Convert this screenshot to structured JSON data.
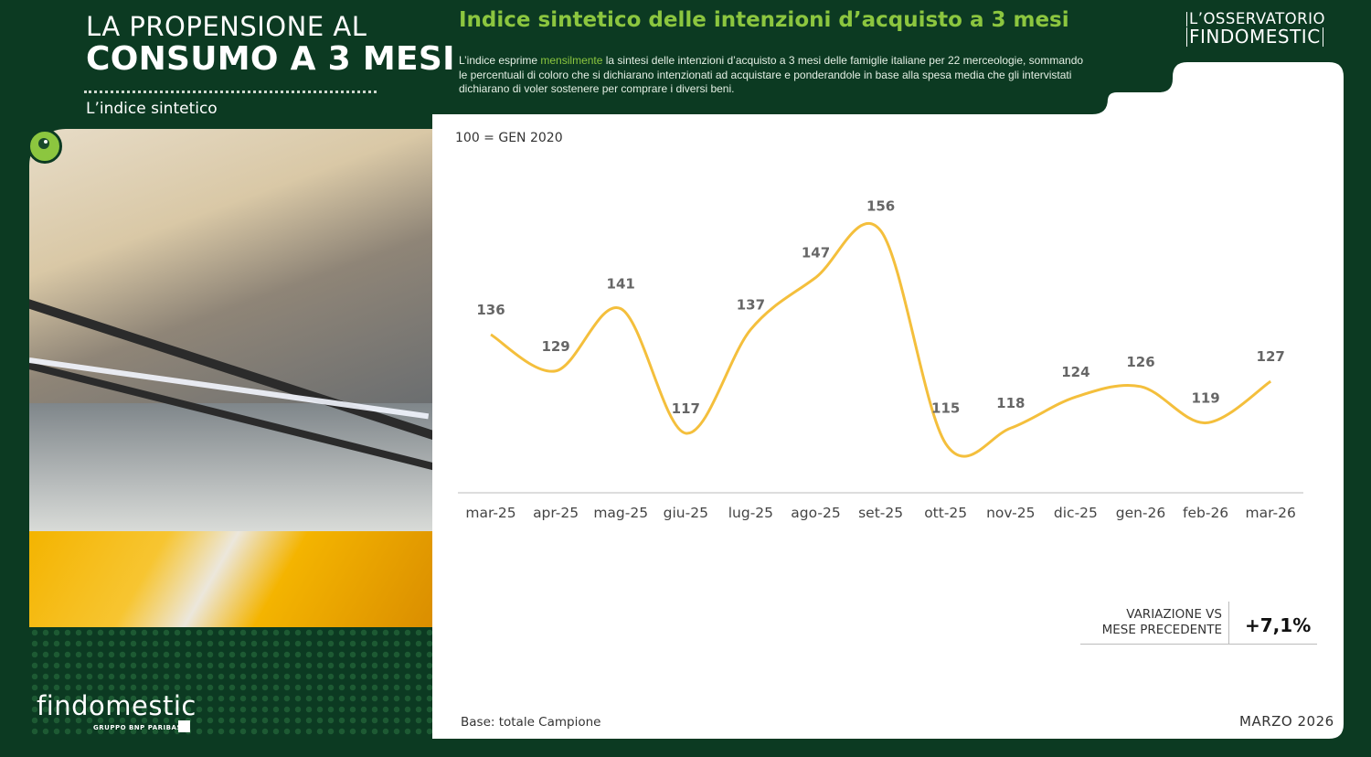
{
  "header": {
    "title_line1": "LA PROPENSIONE AL",
    "title_line2": "CONSUMO A 3 MESI",
    "subtitle": "L’indice sintetico"
  },
  "chart_heading": "Indice sintetico delle intenzioni d’acquisto a 3 mesi",
  "description": {
    "part1": "L’indice esprime ",
    "highlight": "mensilmente",
    "part2": " la sintesi delle intenzioni d’acquisto a 3 mesi delle famiglie italiane per 22 merceologie, sommando le percentuali di coloro che si dichiarano intenzionati ad acquistare e ponderandole in base alla spesa media che gli intervistati dichiarano di voler sostenere per comprare i diversi beni."
  },
  "brand": {
    "line1": "L’OSSERVATORIO",
    "line2": "FINDOMESTIC"
  },
  "logo": {
    "name": "findomestic",
    "sub": "GRUPPO BNP PARIBAS"
  },
  "reference_note": "100 = GEN 2020",
  "base_note": "Base: totale Campione",
  "date_note": "MARZO 2026",
  "variation": {
    "label_line1": "VARIAZIONE VS",
    "label_line2": "MESE PRECEDENTE",
    "value": "+7,1%"
  },
  "colors": {
    "background": "#0c3a22",
    "accent_green": "#8cc63f",
    "line": "#f4bf3c",
    "label": "#666666"
  },
  "chart_data": {
    "type": "line",
    "categories": [
      "mar-25",
      "apr-25",
      "mag-25",
      "giu-25",
      "lug-25",
      "ago-25",
      "set-25",
      "ott-25",
      "nov-25",
      "dic-25",
      "gen-26",
      "feb-26",
      "mar-26"
    ],
    "values": [
      136,
      129,
      141,
      117,
      137,
      147,
      156,
      115,
      118,
      124,
      126,
      119,
      127
    ],
    "data_labels": [
      "136",
      "129",
      "141",
      "117",
      "137",
      "147",
      "156",
      "115",
      "118",
      "124",
      "126",
      "119",
      "127"
    ],
    "title": "Indice sintetico delle intenzioni d’acquisto a 3 mesi",
    "grid": false,
    "legend": "none"
  }
}
